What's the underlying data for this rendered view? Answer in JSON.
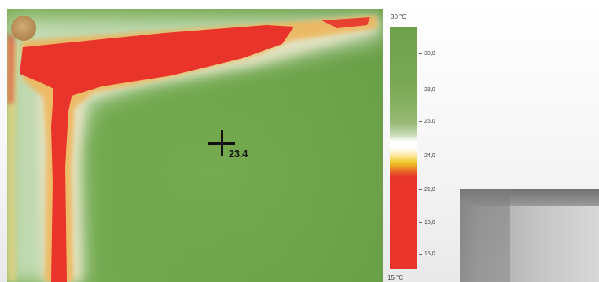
{
  "thermal_image": {
    "spot_value": "23.4"
  },
  "scale": {
    "max_label": "30 °C",
    "min_label": "15 °C",
    "ticks": [
      "30,0",
      "28,0",
      "26,0",
      "24,0",
      "21,0",
      "18,0",
      "15,0"
    ]
  },
  "colors": {
    "cold": "#e8342a",
    "transition": "#f0c82a",
    "neutral": "#ffffff",
    "warm": "#6ea04a"
  }
}
